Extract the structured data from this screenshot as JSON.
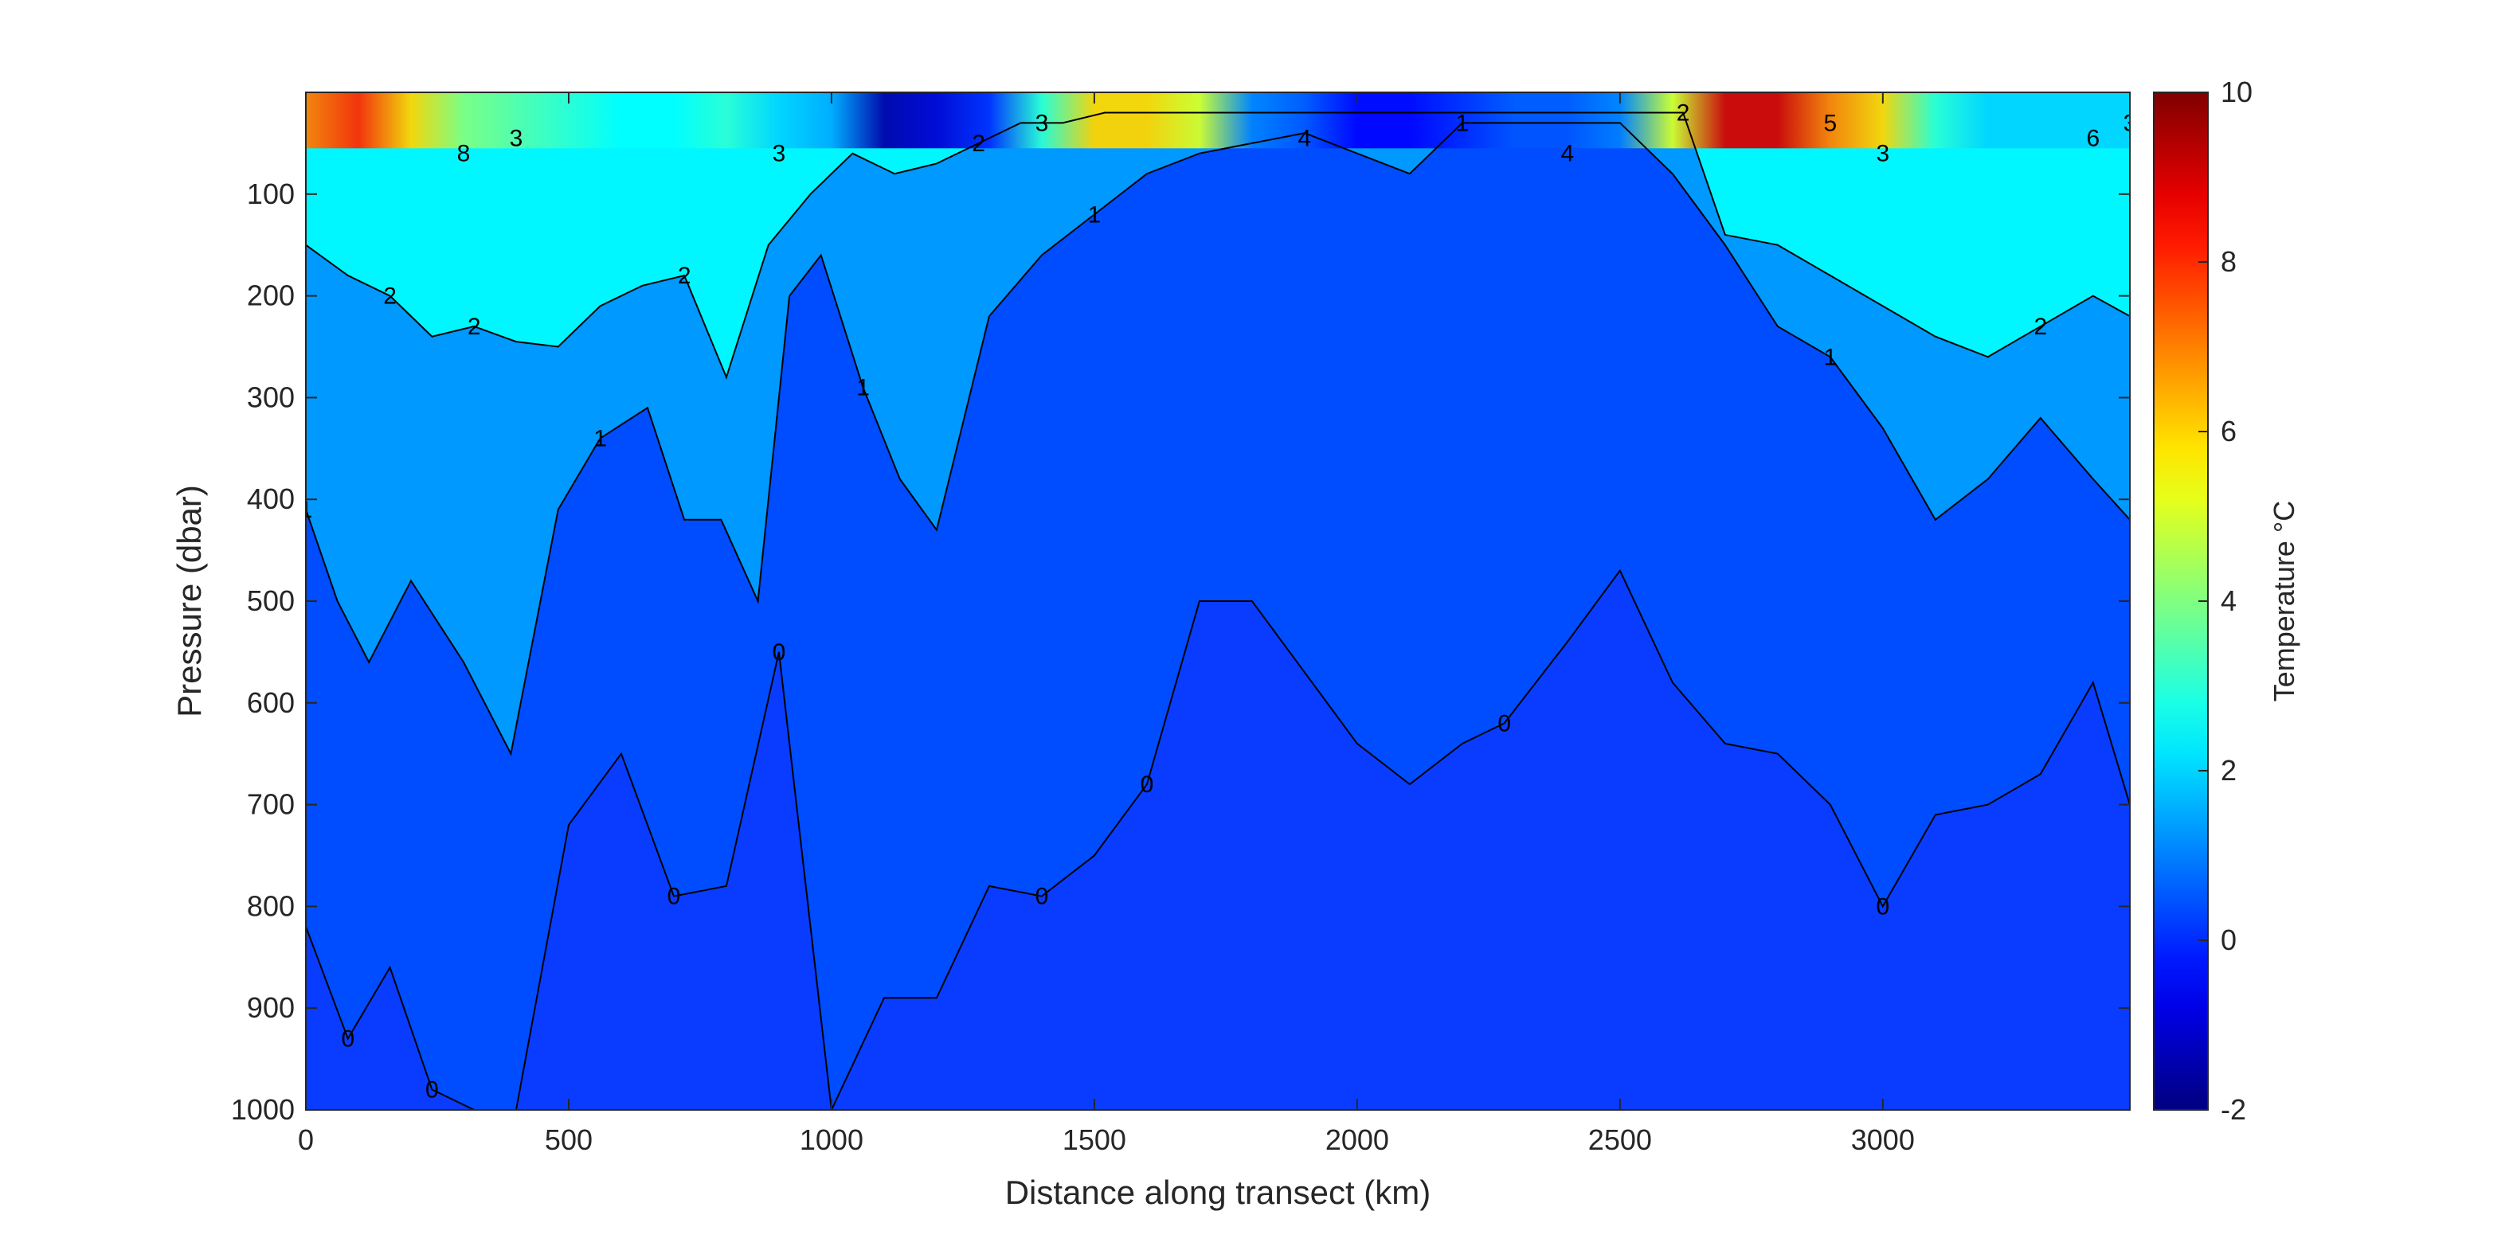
{
  "chart_data": {
    "type": "heatmap",
    "title": "",
    "xlabel": "Distance along transect (km)",
    "ylabel": "Pressure (dbar)",
    "colorbar_label": "Temperature °C",
    "colormap": "jet",
    "xlim": [
      0,
      3470
    ],
    "ylim": [
      0,
      1000
    ],
    "y_reversed": true,
    "clim": [
      -2,
      10
    ],
    "xticks": [
      "0",
      "500",
      "1000",
      "1500",
      "2000",
      "2500",
      "3000"
    ],
    "yticks": [
      "100",
      "200",
      "300",
      "400",
      "500",
      "600",
      "700",
      "800",
      "900",
      "1000"
    ],
    "colorbar_ticks": [
      "-2",
      "0",
      "2",
      "4",
      "6",
      "8",
      "10"
    ],
    "grid": false,
    "surface_temperature": {
      "x": [
        0,
        100,
        200,
        300,
        400,
        500,
        600,
        700,
        800,
        900,
        1000,
        1100,
        1200,
        1300,
        1400,
        1500,
        1600,
        1700,
        1800,
        1900,
        2000,
        2100,
        2200,
        2300,
        2400,
        2500,
        2600,
        2700,
        2800,
        2900,
        3000,
        3100,
        3200,
        3300,
        3400,
        3470
      ],
      "values": [
        7,
        8,
        6,
        4,
        3.5,
        3,
        2.5,
        2.5,
        3,
        2,
        1.5,
        -1.5,
        -1,
        0,
        3,
        6,
        6,
        5,
        1,
        0.5,
        -0.5,
        -0.5,
        0,
        0.5,
        0.5,
        1,
        5,
        9,
        9,
        7,
        6,
        3,
        2,
        2,
        2,
        2
      ]
    },
    "contours": [
      {
        "level": 1,
        "label": "1",
        "x": [
          0,
          60,
          120,
          200,
          300,
          390,
          480,
          560,
          650,
          720,
          790,
          860,
          920,
          980,
          1060,
          1130,
          1200,
          1300,
          1400,
          1500,
          1600,
          1700,
          1800,
          1900,
          2000,
          2100,
          2200,
          2300,
          2400,
          2500,
          2600,
          2700,
          2800,
          2900,
          3000,
          3100,
          3200,
          3300,
          3400,
          3470
        ],
        "depth": [
          410,
          500,
          560,
          480,
          560,
          650,
          410,
          340,
          310,
          420,
          420,
          500,
          200,
          160,
          290,
          380,
          430,
          220,
          160,
          120,
          80,
          60,
          50,
          40,
          60,
          80,
          30,
          30,
          30,
          30,
          80,
          150,
          230,
          260,
          330,
          420,
          380,
          320,
          380,
          420
        ]
      },
      {
        "level": 2,
        "label": "2",
        "x": [
          0,
          80,
          160,
          240,
          320,
          400,
          480,
          560,
          640,
          720,
          800,
          880,
          960,
          1040,
          1120,
          1200,
          1280,
          1360,
          1440,
          1520,
          1600,
          1680,
          1760,
          2620,
          2700,
          2800,
          2900,
          3000,
          3100,
          3200,
          3300,
          3400,
          3470
        ],
        "depth": [
          150,
          180,
          200,
          240,
          230,
          245,
          250,
          210,
          190,
          180,
          280,
          150,
          100,
          60,
          80,
          70,
          50,
          30,
          30,
          20,
          20,
          20,
          20,
          20,
          140,
          150,
          180,
          210,
          240,
          260,
          230,
          200,
          220
        ]
      },
      {
        "level": 0,
        "label": "0",
        "x": [
          0,
          80,
          160,
          240,
          320,
          400,
          500,
          600,
          700,
          800,
          900,
          1000,
          1100,
          1200,
          1300,
          1400,
          1500,
          1600,
          1700,
          1800,
          1900,
          2000,
          2100,
          2200,
          2280,
          2400,
          2500,
          2600,
          2700,
          2800,
          2900,
          3000,
          3100,
          3200,
          3300,
          3400,
          3470
        ],
        "depth": [
          820,
          930,
          860,
          980,
          1000,
          1000,
          720,
          650,
          790,
          780,
          550,
          1000,
          890,
          890,
          780,
          790,
          750,
          680,
          500,
          500,
          570,
          640,
          680,
          640,
          620,
          540,
          470,
          580,
          640,
          650,
          700,
          800,
          710,
          700,
          670,
          580,
          700
        ]
      }
    ],
    "contour_labels": [
      "0",
      "0",
      "0",
      "0",
      "0",
      "0",
      "0",
      "0",
      "1",
      "1",
      "1",
      "1",
      "1",
      "1",
      "2",
      "2",
      "2",
      "2",
      "2",
      "2",
      "3",
      "3",
      "3",
      "3",
      "3",
      "4",
      "4",
      "5",
      "6",
      "8"
    ]
  }
}
